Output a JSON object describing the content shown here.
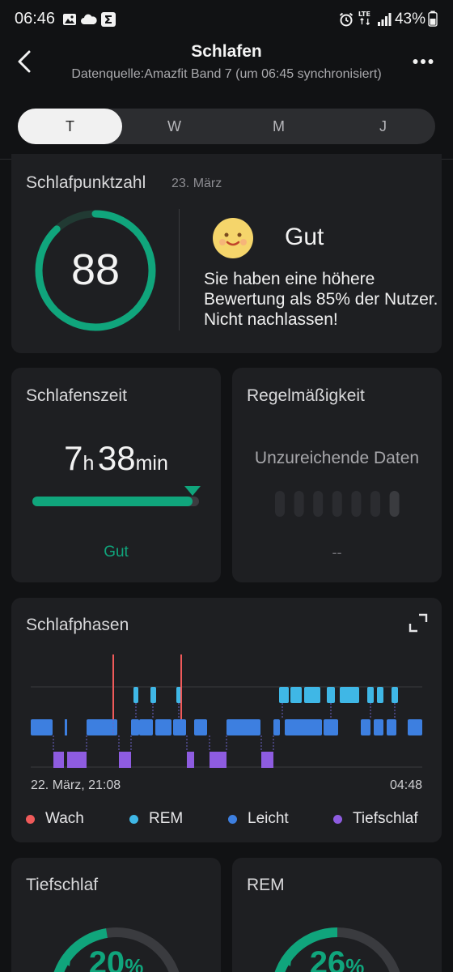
{
  "status_bar": {
    "time": "06:46",
    "battery": "43%",
    "network": "LTE"
  },
  "header": {
    "title": "Schlafen",
    "subtitle": "Datenquelle:Amazfit Band 7 (um 06:45 synchronisiert)"
  },
  "tabs": [
    {
      "label": "T",
      "active": true
    },
    {
      "label": "W",
      "active": false
    },
    {
      "label": "M",
      "active": false
    },
    {
      "label": "J",
      "active": false
    }
  ],
  "score": {
    "title": "Schlafpunktzahl",
    "date": "23. März",
    "value": "88",
    "value_fraction": 0.88,
    "rating": "Gut",
    "description": "Sie haben eine höhere Bewertung als 85% der Nutzer. Nicht nachlassen!"
  },
  "sleep_time": {
    "title": "Schlafenszeit",
    "hours": "7",
    "hours_unit": "h",
    "minutes": "38",
    "minutes_unit": "min",
    "progress_fraction": 0.96,
    "status": "Gut"
  },
  "regularity": {
    "title": "Regelmäßigkeit",
    "message": "Unzureichende Daten",
    "placeholder": "--",
    "bar_count": 7
  },
  "phases": {
    "title": "Schlafphasen",
    "start_label": "22. März, 21:08",
    "end_label": "04:48",
    "legend": [
      {
        "key": "wach",
        "label": "Wach",
        "color": "#ef5a5a"
      },
      {
        "key": "rem",
        "label": "REM",
        "color": "#3fb7e6"
      },
      {
        "key": "leicht",
        "label": "Leicht",
        "color": "#3d7fe0"
      },
      {
        "key": "tief",
        "label": "Tiefschlaf",
        "color": "#8e5ce0"
      }
    ]
  },
  "deep_sleep": {
    "title": "Tiefschlaf",
    "value": "20",
    "unit": "%"
  },
  "rem_sleep": {
    "title": "REM",
    "value": "26",
    "unit": "%"
  },
  "colors": {
    "accent": "#10a57c",
    "card": "#1e1f22",
    "background": "#111214"
  }
}
